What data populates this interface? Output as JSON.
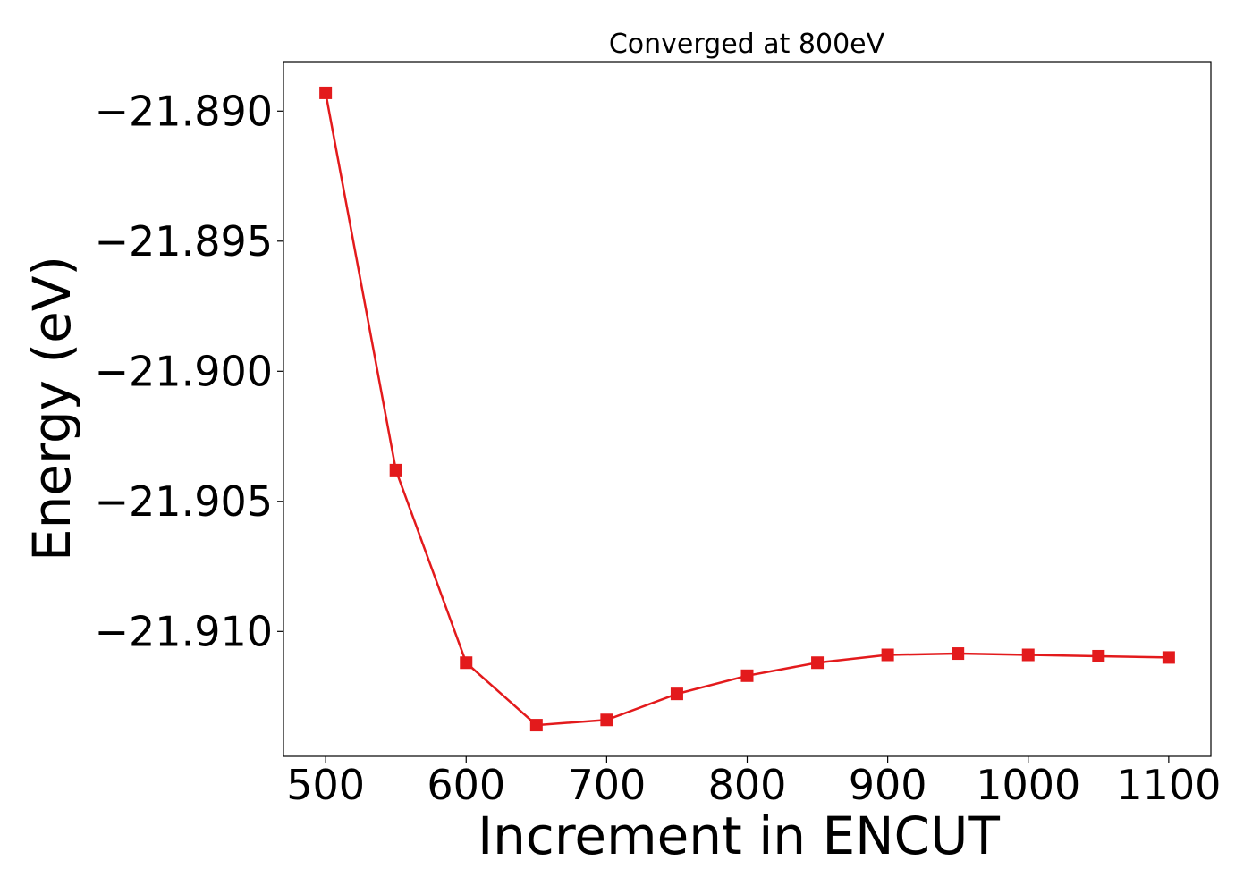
{
  "chart_data": {
    "type": "line",
    "title": "Converged at 800eV",
    "xlabel": "Increment in ENCUT",
    "ylabel": "Energy (eV)",
    "xlim": [
      470,
      1130
    ],
    "ylim": [
      -21.9148,
      -21.8881
    ],
    "xticks": [
      500,
      600,
      700,
      800,
      900,
      1000,
      1100
    ],
    "xtick_labels": [
      "500",
      "600",
      "700",
      "800",
      "900",
      "1000",
      "1100"
    ],
    "yticks": [
      -21.89,
      -21.895,
      -21.9,
      -21.905,
      -21.91
    ],
    "ytick_labels": [
      "−21.890",
      "−21.895",
      "−21.900",
      "−21.905",
      "−21.910"
    ],
    "grid": false,
    "series": [
      {
        "color": "#e31a1c",
        "marker": "square",
        "x": [
          500,
          550,
          600,
          650,
          700,
          750,
          800,
          850,
          900,
          950,
          1000,
          1050,
          1100
        ],
        "y": [
          -21.8893,
          -21.9038,
          -21.9112,
          -21.9136,
          -21.9134,
          -21.9124,
          -21.9117,
          -21.9112,
          -21.9109,
          -21.91085,
          -21.9109,
          -21.91095,
          -21.911
        ]
      }
    ]
  }
}
